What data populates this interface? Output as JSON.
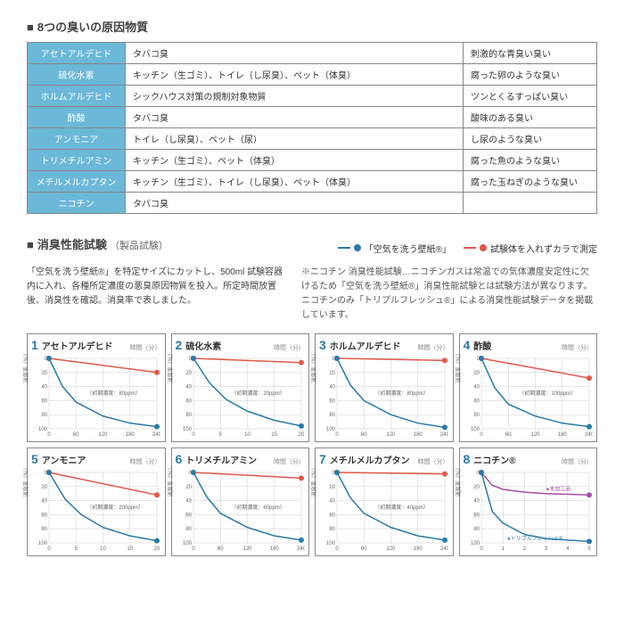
{
  "section1": {
    "title": "8つの臭いの原因物質",
    "rows": [
      {
        "name": "アセトアルデヒド",
        "source": "タバコ臭",
        "desc": "刺激的な青臭い臭い"
      },
      {
        "name": "硫化水素",
        "source": "キッチン（生ゴミ）、トイレ（し尿臭）、ペット（体臭）",
        "desc": "腐った卵のような臭い"
      },
      {
        "name": "ホルムアルデヒド",
        "source": "シックハウス対策の規制対象物質",
        "desc": "ツンとくるすっぱい臭い"
      },
      {
        "name": "酢酸",
        "source": "タバコ臭",
        "desc": "酸味のある臭い"
      },
      {
        "name": "アンモニア",
        "source": "トイレ（し尿臭）、ペット（尿）",
        "desc": "し尿のような臭い"
      },
      {
        "name": "トリメチルアミン",
        "source": "キッチン（生ゴミ）、ペット（体臭）",
        "desc": "腐った魚のような臭い"
      },
      {
        "name": "メチルメルカプタン",
        "source": "キッチン（生ゴミ）、トイレ（し尿臭）、ペット（体臭）",
        "desc": "腐った玉ねぎのような臭い"
      },
      {
        "name": "ニコチン",
        "source": "タバコ臭",
        "desc": ""
      }
    ]
  },
  "section2": {
    "title": "消臭性能試験",
    "subtitle": "（製品試験）",
    "legend": {
      "blue": "「空気を洗う壁紙®」",
      "red": "試験体を入れずカラで測定",
      "blue_color": "#2a7aa8",
      "red_color": "#e0584a"
    },
    "left_text": "「空気を洗う壁紙®」を特定サイズにカットし、500ml 試験容器内に入れ、各種所定濃度の悪臭原因物質を投入。所定時間放置後、消臭性を確認。消臭率で表しました。",
    "right_text": "※ニコチン 消臭性能試験…ニコチンガスは常温での気体濃度安定性に欠けるため「空気を洗う壁紙®」消臭性能試験とは試験方法が異なります。ニコチンのみ「トリプルフレッシュ®」による消臭性能試験データを掲載しています。"
  },
  "charts": {
    "x_ticks_a": [
      0,
      60,
      120,
      180,
      240
    ],
    "x_ticks_b": [
      0,
      5,
      10,
      15,
      20
    ],
    "x_ticks_n": [
      0,
      1,
      2,
      3,
      4,
      5
    ],
    "y_ticks": [
      0,
      20,
      40,
      60,
      80,
      100
    ],
    "y_label": "消臭率（％）",
    "time_label": "時間（分）",
    "colors": {
      "blue": "#2a7aa8",
      "red": "#e0584a",
      "purple": "#a64ca6",
      "grid": "#cccccc"
    },
    "items": [
      {
        "num": "1",
        "name": "アセトアルデヒド",
        "xmax": 240,
        "ticks": "a",
        "note": "（初期濃度：80ppm）",
        "blue": [
          [
            0,
            0
          ],
          [
            30,
            40
          ],
          [
            60,
            62
          ],
          [
            120,
            82
          ],
          [
            180,
            92
          ],
          [
            240,
            97
          ]
        ],
        "red": [
          [
            0,
            0
          ],
          [
            240,
            20
          ]
        ]
      },
      {
        "num": "2",
        "name": "硫化水素",
        "xmax": 20,
        "ticks": "b",
        "note": "（初期濃度：20ppm）",
        "blue": [
          [
            0,
            0
          ],
          [
            3,
            35
          ],
          [
            6,
            58
          ],
          [
            10,
            75
          ],
          [
            15,
            88
          ],
          [
            20,
            96
          ]
        ],
        "red": [
          [
            0,
            0
          ],
          [
            20,
            6
          ]
        ]
      },
      {
        "num": "3",
        "name": "ホルムアルデヒド",
        "xmax": 240,
        "ticks": "a",
        "note": "（初期濃度：80ppm）",
        "blue": [
          [
            0,
            0
          ],
          [
            30,
            38
          ],
          [
            60,
            60
          ],
          [
            120,
            80
          ],
          [
            180,
            92
          ],
          [
            240,
            98
          ]
        ],
        "red": [
          [
            0,
            0
          ],
          [
            240,
            3
          ]
        ]
      },
      {
        "num": "4",
        "name": "酢酸",
        "xmax": 240,
        "ticks": "a",
        "note": "（初期濃度：100ppm）",
        "blue": [
          [
            0,
            0
          ],
          [
            30,
            42
          ],
          [
            60,
            65
          ],
          [
            120,
            82
          ],
          [
            180,
            92
          ],
          [
            240,
            97
          ]
        ],
        "red": [
          [
            0,
            0
          ],
          [
            240,
            28
          ]
        ]
      },
      {
        "num": "5",
        "name": "アンモニア",
        "xmax": 20,
        "ticks": "b",
        "note": "（初期濃度：200ppm）",
        "blue": [
          [
            0,
            0
          ],
          [
            3,
            38
          ],
          [
            6,
            60
          ],
          [
            10,
            78
          ],
          [
            15,
            90
          ],
          [
            20,
            97
          ]
        ],
        "red": [
          [
            0,
            0
          ],
          [
            20,
            32
          ]
        ]
      },
      {
        "num": "6",
        "name": "トリメチルアミン",
        "xmax": 240,
        "ticks": "a",
        "note": "（初期濃度：60ppm）",
        "blue": [
          [
            0,
            0
          ],
          [
            30,
            35
          ],
          [
            60,
            58
          ],
          [
            120,
            78
          ],
          [
            180,
            90
          ],
          [
            240,
            96
          ]
        ],
        "red": [
          [
            0,
            0
          ],
          [
            240,
            8
          ]
        ]
      },
      {
        "num": "7",
        "name": "メチルメルカプタン",
        "xmax": 240,
        "ticks": "a",
        "note": "（初期濃度：40ppm）",
        "blue": [
          [
            0,
            0
          ],
          [
            30,
            36
          ],
          [
            60,
            58
          ],
          [
            120,
            78
          ],
          [
            180,
            90
          ],
          [
            240,
            96
          ]
        ],
        "red": [
          [
            0,
            0
          ],
          [
            240,
            2
          ]
        ]
      },
      {
        "num": "8",
        "name": "ニコチン®",
        "xmax": 5,
        "ticks": "n",
        "note": "",
        "blue": [
          [
            0,
            0
          ],
          [
            0.5,
            55
          ],
          [
            1,
            72
          ],
          [
            2,
            88
          ],
          [
            3,
            94
          ],
          [
            5,
            98
          ]
        ],
        "purple": [
          [
            0,
            0
          ],
          [
            0.5,
            18
          ],
          [
            1,
            24
          ],
          [
            2,
            28
          ],
          [
            3,
            30
          ],
          [
            5,
            32
          ]
        ],
        "blue_label": "トリプルフレッシュ®",
        "purple_label": "未加工品"
      }
    ]
  }
}
